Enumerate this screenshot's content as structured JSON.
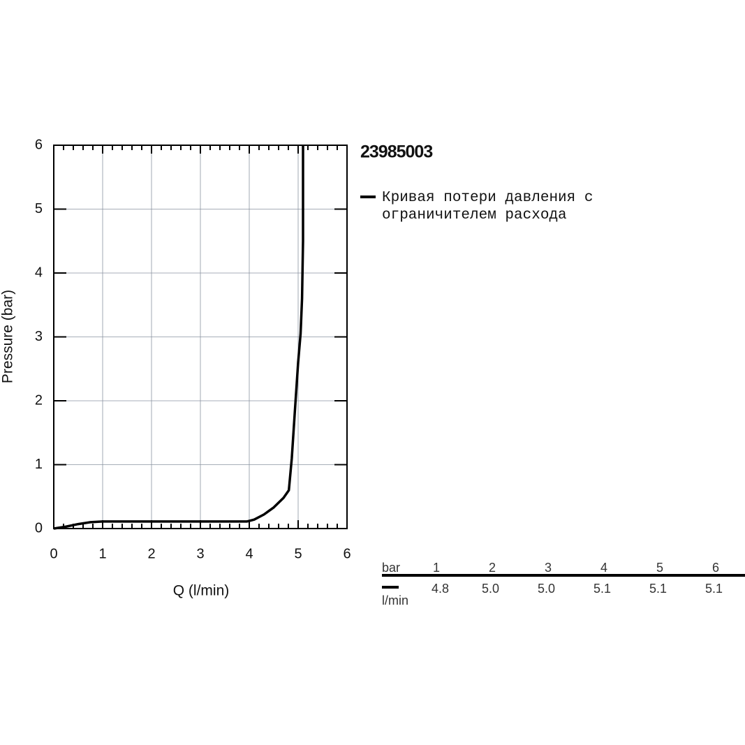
{
  "chart_data": {
    "type": "line",
    "title": "23985003",
    "xlabel": "Q (l/min)",
    "ylabel": "Pressure (bar)",
    "xlim": [
      0,
      6
    ],
    "ylim": [
      0,
      6
    ],
    "xticks": [
      0,
      1,
      2,
      3,
      4,
      5,
      6
    ],
    "yticks": [
      0,
      1,
      2,
      3,
      4,
      5,
      6
    ],
    "xminorticks": [
      0.2,
      0.4,
      0.6,
      0.8,
      1.2,
      1.4,
      1.6,
      1.8,
      2.2,
      2.4,
      2.6,
      2.8,
      3.2,
      3.4,
      3.6,
      3.8,
      4.2,
      4.4,
      4.6,
      4.8,
      5.2,
      5.4,
      5.6,
      5.8
    ],
    "grid": true,
    "series": [
      {
        "name": "Кривая потери давления с ограничителем расхода",
        "color": "#000000",
        "x": [
          0,
          0.25,
          0.5,
          0.75,
          1,
          2,
          3,
          3.95,
          4.1,
          4.3,
          4.5,
          4.7,
          4.81,
          4.87,
          4.93,
          5.0,
          5.05,
          5.08,
          5.1,
          5.1
        ],
        "values": [
          0,
          0.03,
          0.07,
          0.1,
          0.11,
          0.11,
          0.11,
          0.11,
          0.14,
          0.22,
          0.33,
          0.48,
          0.6,
          1.1,
          1.8,
          2.6,
          3.05,
          3.6,
          4.5,
          6
        ]
      }
    ]
  },
  "table": {
    "header": "bar",
    "columns": [
      1,
      2,
      3,
      4,
      5,
      6
    ],
    "unit": "l/min",
    "values": [
      "4.8",
      "5.0",
      "5.0",
      "5.1",
      "5.1",
      "5.1"
    ]
  }
}
